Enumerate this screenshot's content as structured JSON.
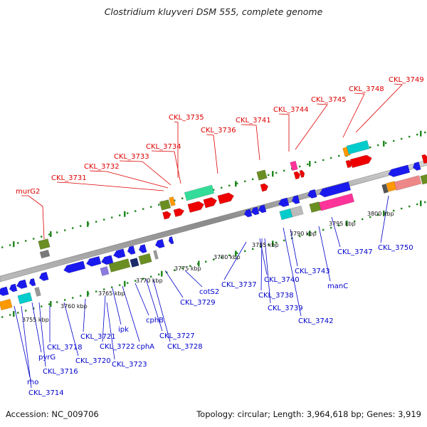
{
  "title": "Clostridium kluyveri DSM 555, complete genome",
  "footer": {
    "accession": "Accession: NC_009706",
    "summary": "Topology: circular; Length: 3,964,618 bp; Genes: 3,919"
  },
  "colors": {
    "backbone": "#9a9a9a",
    "forward_label": "#dd0000",
    "reverse_label": "#0000cc",
    "dots": "#228822"
  },
  "scale_ticks": [
    "3755 kbp",
    "3760 kbp",
    "3765 kbp",
    "3770 kbp",
    "3775 kbp",
    "3780 kbp",
    "3785 kbp",
    "3790 kbp",
    "3795 kbp",
    "3800 kbp"
  ],
  "forward_labels": [
    "murG2",
    "CKL_3731",
    "CKL_3732",
    "CKL_3733",
    "CKL_3734",
    "CKL_3735",
    "CKL_3736",
    "CKL_3741",
    "CKL_3744",
    "CKL_3745",
    "CKL_3748",
    "CKL_3749"
  ],
  "reverse_labels": [
    "rho",
    "CKL_3714",
    "pyrG",
    "CKL_3716",
    "CKL_3718",
    "CKL_3720",
    "CKL_3721",
    "CKL_3722",
    "CKL_3723",
    "ipk",
    "cphA",
    "cphB",
    "CKL_3727",
    "CKL_3728",
    "CKL_3729",
    "cotS2",
    "CKL_3737",
    "CKL_3738",
    "CKL_3739",
    "CKL_3740",
    "CKL_3742",
    "CKL_3743",
    "manC",
    "CKL_3747",
    "CKL_3750"
  ]
}
